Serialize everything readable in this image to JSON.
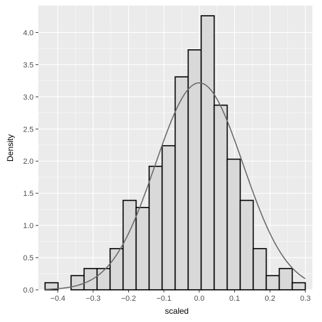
{
  "chart_data": {
    "type": "histogram",
    "xlabel": "scaled",
    "ylabel": "Density",
    "xlim": [
      -0.455,
      0.32
    ],
    "ylim": [
      0,
      4.42
    ],
    "x_ticks": [
      -0.4,
      -0.3,
      -0.2,
      -0.1,
      0.0,
      0.1,
      0.2,
      0.3
    ],
    "x_tick_labels": [
      "−0.4",
      "−0.3",
      "−0.2",
      "−0.1",
      "0.0",
      "0.1",
      "0.2",
      "0.3"
    ],
    "y_ticks": [
      0,
      0.5,
      1.0,
      1.5,
      2.0,
      2.5,
      3.0,
      3.5,
      4.0
    ],
    "y_tick_labels": [
      "0.0",
      "0.5",
      "1.0",
      "1.5",
      "2.0",
      "2.5",
      "3.0",
      "3.5",
      "4.0"
    ],
    "grid": true,
    "bins": {
      "edges": [
        -0.4362,
        -0.3994,
        -0.3626,
        -0.3258,
        -0.289,
        -0.2522,
        -0.2154,
        -0.1786,
        -0.1418,
        -0.105,
        -0.0682,
        -0.0314,
        0.0054,
        0.0422,
        0.079,
        0.1158,
        0.1526,
        0.1894,
        0.2262,
        0.263,
        0.2998
      ],
      "density": [
        0.11,
        0.0,
        0.22,
        0.33,
        0.33,
        0.64,
        1.39,
        1.28,
        1.92,
        2.24,
        3.31,
        3.73,
        4.26,
        2.87,
        2.03,
        1.39,
        0.64,
        0.22,
        0.33,
        0.11
      ]
    },
    "normal_curve": {
      "mean": 0.0,
      "sd": 0.124,
      "color": "#6b6b6b"
    },
    "colors": {
      "panel": "#ebebeb",
      "grid": "#ffffff",
      "bar_fill": "#d9d9d9",
      "bar_stroke": "#000000"
    }
  }
}
